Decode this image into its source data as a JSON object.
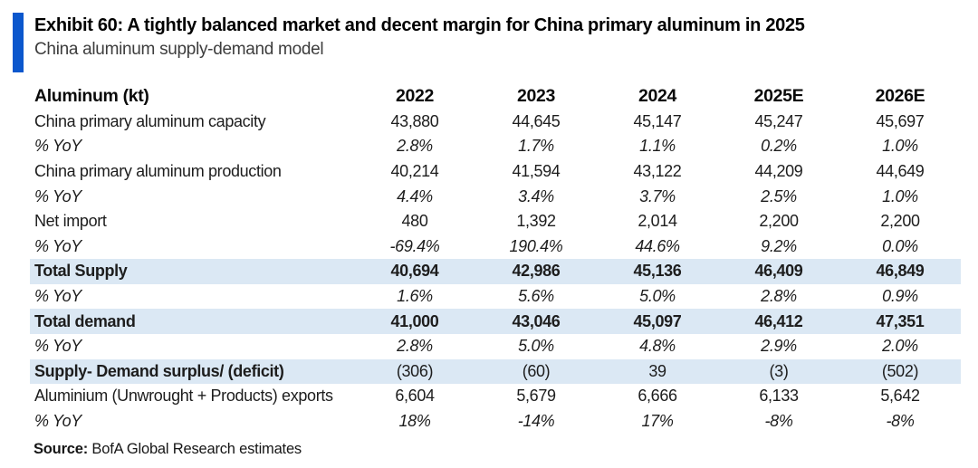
{
  "exhibit": {
    "title": "Exhibit 60: A tightly balanced market and decent margin for China primary aluminum in 2025",
    "subtitle": "China aluminum supply-demand model",
    "source_label": "Source:",
    "source_text": " BofA Global Research estimates"
  },
  "colors": {
    "accent": "#0b57cd",
    "highlight": "#dbe8f4",
    "text": "#1d1d1d"
  },
  "table": {
    "columns": [
      "Aluminum (kt)",
      "2022",
      "2023",
      "2024",
      "2025E",
      "2026E"
    ],
    "rows": [
      {
        "label": "China primary aluminum capacity",
        "type": "data",
        "values": [
          "43,880",
          "44,645",
          "45,147",
          "45,247",
          "45,697"
        ]
      },
      {
        "label": "% YoY",
        "type": "pct",
        "values": [
          "2.8%",
          "1.7%",
          "1.1%",
          "0.2%",
          "1.0%"
        ]
      },
      {
        "label": "China primary aluminum production",
        "type": "data",
        "values": [
          "40,214",
          "41,594",
          "43,122",
          "44,209",
          "44,649"
        ]
      },
      {
        "label": "% YoY",
        "type": "pct",
        "values": [
          "4.4%",
          "3.4%",
          "3.7%",
          "2.5%",
          "1.0%"
        ]
      },
      {
        "label": "Net import",
        "type": "data",
        "values": [
          "480",
          "1,392",
          "2,014",
          "2,200",
          "2,200"
        ]
      },
      {
        "label": "% YoY",
        "type": "pct",
        "values": [
          "-69.4%",
          "190.4%",
          "44.6%",
          "9.2%",
          "0.0%"
        ]
      },
      {
        "label": "Total Supply",
        "type": "total",
        "values": [
          "40,694",
          "42,986",
          "45,136",
          "46,409",
          "46,849"
        ]
      },
      {
        "label": "% YoY",
        "type": "pct",
        "values": [
          "1.6%",
          "5.6%",
          "5.0%",
          "2.8%",
          "0.9%"
        ]
      },
      {
        "label": "Total demand",
        "type": "total",
        "values": [
          "41,000",
          "43,046",
          "45,097",
          "46,412",
          "47,351"
        ]
      },
      {
        "label": "% YoY",
        "type": "pct",
        "values": [
          "2.8%",
          "5.0%",
          "4.8%",
          "2.9%",
          "2.0%"
        ]
      },
      {
        "label": "Supply- Demand surplus/ (deficit)",
        "type": "surplus",
        "values": [
          "(306)",
          "(60)",
          "39",
          "(3)",
          "(502)"
        ]
      },
      {
        "label": "Aluminium (Unwrought + Products) exports",
        "type": "data",
        "values": [
          "6,604",
          "5,679",
          "6,666",
          "6,133",
          "5,642"
        ]
      },
      {
        "label": "% YoY",
        "type": "pct",
        "values": [
          "18%",
          "-14%",
          "17%",
          "-8%",
          "-8%"
        ]
      }
    ]
  }
}
